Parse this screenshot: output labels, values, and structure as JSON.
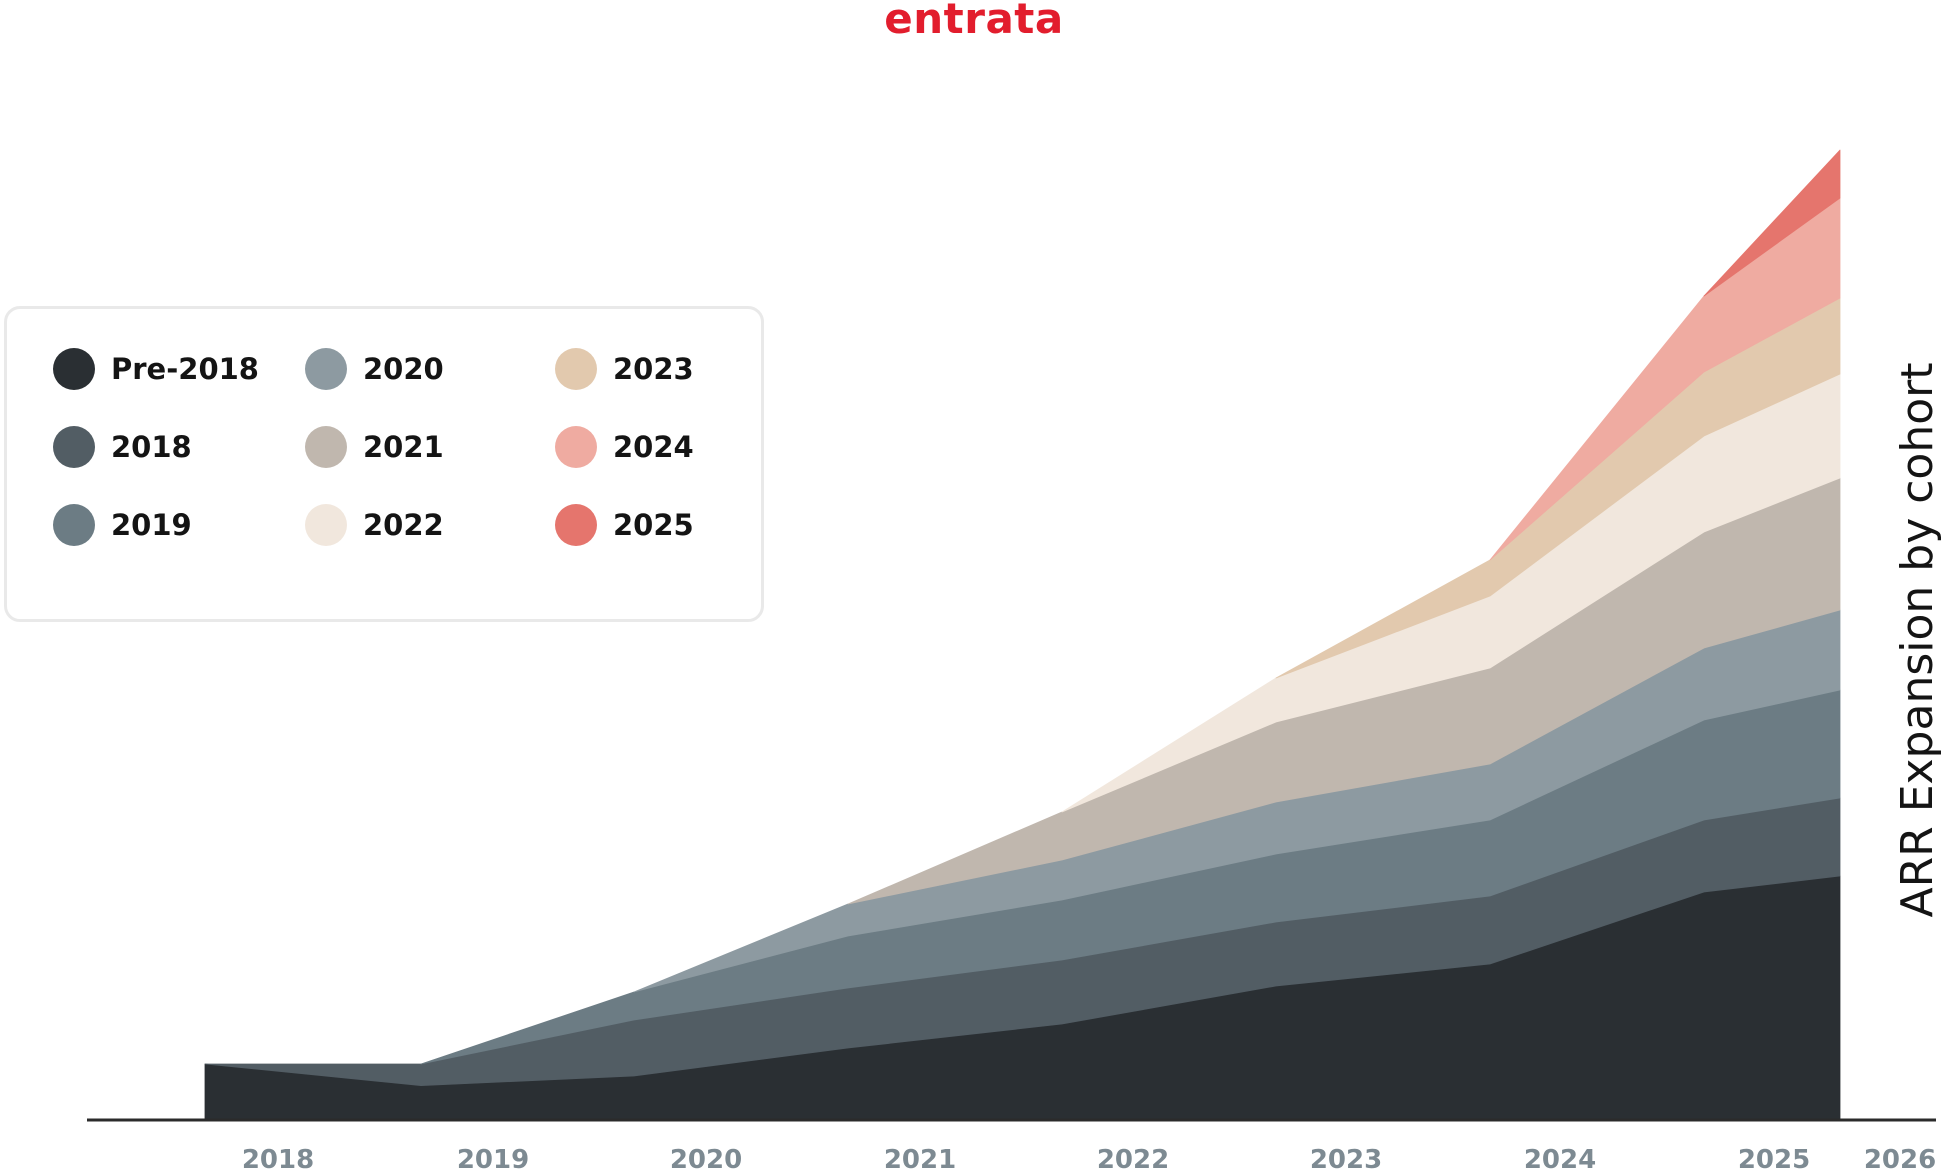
{
  "brand": {
    "logo_text": "entrata",
    "logo_color": "#e21d2d"
  },
  "chart_data": {
    "type": "area",
    "stacked": true,
    "title": "ARR Expansion by cohort",
    "title_placement": "right, rotated vertical",
    "legend_placement": "top-left",
    "grid": false,
    "xlabel": "",
    "ylabel": "",
    "x_ticks": [
      "2018",
      "2019",
      "2020",
      "2021",
      "2022",
      "2023",
      "2024",
      "2025",
      "2026"
    ],
    "y_axis_visible": false,
    "x": [
      "2018",
      "2019",
      "2020",
      "2021",
      "2022",
      "2023",
      "2024",
      "2025",
      "2026"
    ],
    "series": [
      {
        "name": "Pre-2018",
        "color": "#2a2f33",
        "values": [
          14,
          8.6,
          11,
          18,
          24,
          33.5,
          39,
          57,
          61
        ]
      },
      {
        "name": "2018",
        "color": "#525d64",
        "values": [
          null,
          5.4,
          14,
          15,
          16,
          16,
          17,
          18,
          19.5
        ]
      },
      {
        "name": "2019",
        "color": "#6c7c84",
        "values": [
          null,
          null,
          7,
          13,
          15,
          17,
          19,
          25,
          27
        ]
      },
      {
        "name": "2020",
        "color": "#8d9aa1",
        "values": [
          null,
          null,
          null,
          8,
          10,
          13,
          14,
          18,
          20
        ]
      },
      {
        "name": "2021",
        "color": "#c0b7ae",
        "values": [
          null,
          null,
          null,
          null,
          12,
          20,
          24,
          29,
          33
        ]
      },
      {
        "name": "2022",
        "color": "#f1e7dd",
        "values": [
          null,
          null,
          null,
          null,
          null,
          11,
          18,
          24,
          26
        ]
      },
      {
        "name": "2023",
        "color": "#e2c9ae",
        "values": [
          null,
          null,
          null,
          null,
          null,
          null,
          9,
          16,
          19
        ]
      },
      {
        "name": "2024",
        "color": "#efaba1",
        "values": [
          null,
          null,
          null,
          null,
          null,
          null,
          null,
          19,
          25
        ]
      },
      {
        "name": "2025",
        "color": "#e5756d",
        "values": [
          null,
          null,
          null,
          null,
          null,
          null,
          null,
          null,
          12
        ]
      }
    ],
    "ylim": [
      0,
      240
    ]
  },
  "styles": {
    "baseline_color": "#2b2b2b",
    "tick_label_color": "#7d8a92",
    "legend_border_color": "#e9e9e9"
  }
}
